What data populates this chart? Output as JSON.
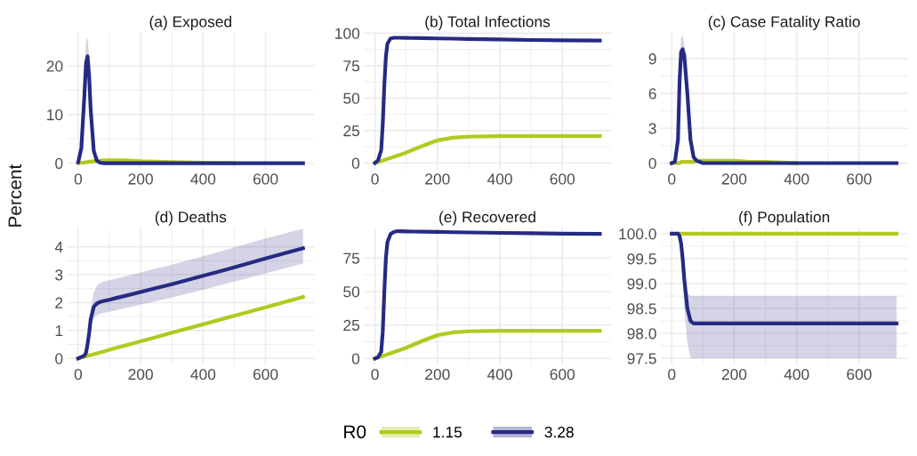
{
  "chart_data": [
    {
      "type": "line",
      "title": "(a) Exposed",
      "ylabel": "Percent",
      "x": [
        0,
        10,
        20,
        25,
        30,
        35,
        40,
        50,
        60,
        70,
        80,
        100,
        120,
        150,
        200,
        250,
        300,
        400,
        500,
        600,
        720
      ],
      "xlim": [
        -36,
        756
      ],
      "xticks": [
        0,
        200,
        400,
        600
      ],
      "ylim": [
        -1.3,
        27
      ],
      "yticks": [
        0,
        10,
        20
      ],
      "grid": true,
      "legend": "bottom",
      "legend_title": "R0",
      "series": [
        {
          "name": "1.15",
          "color": "#b2c91f",
          "values": [
            0,
            0.1,
            0.1,
            0.2,
            0.2,
            0.3,
            0.3,
            0.4,
            0.5,
            0.5,
            0.6,
            0.6,
            0.6,
            0.6,
            0.4,
            0.3,
            0.2,
            0.1,
            0,
            null,
            null
          ]
        },
        {
          "name": "3.28",
          "color": "#262a83",
          "values": [
            0.2,
            3,
            14,
            20.5,
            22,
            18,
            11,
            2.5,
            0.5,
            0.1,
            0,
            0,
            0,
            0,
            0,
            0,
            0,
            0,
            0,
            0,
            0
          ],
          "lower": [
            0.1,
            2,
            10,
            16,
            18,
            14,
            8,
            1.5,
            0.3,
            0,
            0,
            0,
            0,
            0,
            0,
            0,
            0,
            0,
            0,
            0,
            0
          ],
          "upper": [
            0.3,
            4,
            18,
            25,
            26,
            22,
            14,
            3.5,
            0.8,
            0.2,
            0,
            0,
            0,
            0,
            0,
            0,
            0,
            0,
            0,
            0,
            0
          ]
        }
      ]
    },
    {
      "type": "line",
      "title": "(b) Total Infections",
      "x": [
        0,
        10,
        20,
        25,
        30,
        35,
        40,
        50,
        60,
        70,
        80,
        100,
        120,
        150,
        200,
        250,
        300,
        400,
        500,
        600,
        720
      ],
      "xlim": [
        -36,
        756
      ],
      "xticks": [
        0,
        200,
        400,
        600
      ],
      "ylim": [
        -5,
        101
      ],
      "yticks": [
        0,
        25,
        50,
        75,
        100
      ],
      "grid": true,
      "series": [
        {
          "name": "1.15",
          "color": "#b2c91f",
          "values": [
            0,
            0.8,
            1.5,
            1.9,
            2.3,
            2.7,
            3.1,
            3.9,
            4.7,
            5.5,
            6.3,
            8,
            10,
            13,
            17.5,
            19.5,
            20.3,
            20.7,
            20.7,
            20.7,
            20.7
          ],
          "lower": [
            0,
            0.6,
            1.2,
            1.6,
            1.9,
            2.2,
            2.6,
            3.3,
            4,
            4.7,
            5.4,
            7,
            8.5,
            11,
            15,
            18,
            19.5,
            20.3,
            20.4,
            20.4,
            20.4
          ],
          "upper": [
            0,
            0.9,
            1.7,
            2.1,
            2.5,
            2.9,
            3.3,
            4.2,
            5,
            5.9,
            6.8,
            8.6,
            10.8,
            14,
            18.5,
            20.2,
            20.7,
            21,
            21,
            21,
            21
          ]
        },
        {
          "name": "3.28",
          "color": "#262a83",
          "values": [
            0,
            2,
            10,
            30,
            60,
            82,
            92,
            96,
            96.5,
            96.5,
            96.5,
            96.4,
            96.3,
            96.2,
            96,
            95.8,
            95.6,
            95.2,
            94.8,
            94.5,
            94.3
          ]
        }
      ]
    },
    {
      "type": "line",
      "title": "(c) Case Fatality Ratio",
      "x": [
        0,
        10,
        20,
        25,
        30,
        35,
        40,
        50,
        60,
        70,
        80,
        100,
        120,
        150,
        200,
        250,
        300,
        400,
        500,
        600,
        720
      ],
      "xlim": [
        -36,
        756
      ],
      "xticks": [
        0,
        200,
        400,
        600
      ],
      "ylim": [
        -0.55,
        11.3
      ],
      "yticks": [
        0,
        3,
        6,
        9
      ],
      "grid": true,
      "series": [
        {
          "name": "1.15",
          "color": "#b2c91f",
          "values": [
            0,
            0,
            0,
            0,
            0.1,
            0.1,
            0.1,
            0.1,
            0.1,
            0.1,
            0.2,
            0.2,
            0.2,
            0.2,
            0.2,
            0.1,
            0.1,
            0,
            null,
            null,
            null
          ]
        },
        {
          "name": "3.28",
          "color": "#262a83",
          "values": [
            0,
            0.1,
            2,
            7,
            9.6,
            9.8,
            9.3,
            6,
            2,
            0.5,
            0.2,
            0,
            0,
            0,
            0,
            0,
            0,
            0,
            0,
            0,
            0
          ],
          "lower": [
            0,
            0.1,
            1.5,
            6,
            8.5,
            8.8,
            8.3,
            5,
            1.5,
            0.3,
            0.1,
            0,
            0,
            0,
            0,
            0,
            0,
            0,
            0,
            0,
            0
          ],
          "upper": [
            0,
            0.2,
            2.5,
            8.5,
            10.8,
            11,
            10.3,
            7,
            2.5,
            0.7,
            0.2,
            0.1,
            0,
            0,
            0,
            0,
            0,
            0,
            0,
            0,
            0
          ]
        }
      ]
    },
    {
      "type": "line",
      "title": "(d) Deaths",
      "x": [
        0,
        10,
        20,
        25,
        30,
        35,
        40,
        50,
        60,
        70,
        80,
        100,
        120,
        150,
        200,
        250,
        300,
        400,
        500,
        600,
        720
      ],
      "xlim": [
        -36,
        756
      ],
      "xticks": [
        0,
        200,
        400,
        600
      ],
      "ylim": [
        -0.23,
        4.7
      ],
      "yticks": [
        0,
        1,
        2,
        3,
        4
      ],
      "grid": true,
      "series": [
        {
          "name": "1.15",
          "color": "#b2c91f",
          "values": [
            0,
            0.03,
            0.06,
            0.08,
            0.09,
            0.11,
            0.12,
            0.15,
            0.18,
            0.21,
            0.24,
            0.31,
            0.37,
            0.46,
            0.61,
            0.76,
            0.92,
            1.22,
            1.53,
            1.83,
            2.2
          ]
        },
        {
          "name": "3.28",
          "color": "#262a83",
          "values": [
            0,
            0.05,
            0.1,
            0.2,
            0.5,
            0.9,
            1.4,
            1.85,
            1.97,
            2.02,
            2.05,
            2.1,
            2.16,
            2.24,
            2.38,
            2.52,
            2.66,
            2.96,
            3.26,
            3.58,
            3.95
          ],
          "lower": [
            0,
            0.04,
            0.08,
            0.15,
            0.4,
            0.7,
            1.1,
            1.45,
            1.55,
            1.6,
            1.63,
            1.67,
            1.72,
            1.8,
            1.93,
            2.05,
            2.18,
            2.46,
            2.75,
            3.05,
            3.4
          ],
          "upper": [
            0,
            0.06,
            0.12,
            0.25,
            0.6,
            1.1,
            1.8,
            2.35,
            2.6,
            2.7,
            2.75,
            2.8,
            2.86,
            2.94,
            3.08,
            3.22,
            3.36,
            3.66,
            3.98,
            4.3,
            4.65
          ]
        }
      ]
    },
    {
      "type": "line",
      "title": "(e) Recovered",
      "x": [
        0,
        10,
        20,
        25,
        30,
        35,
        40,
        50,
        60,
        70,
        80,
        100,
        120,
        150,
        200,
        250,
        300,
        400,
        500,
        600,
        720
      ],
      "xlim": [
        -36,
        756
      ],
      "xticks": [
        0,
        200,
        400,
        600
      ],
      "ylim": [
        -4.7,
        98
      ],
      "yticks": [
        0,
        25,
        50,
        75
      ],
      "grid": true,
      "series": [
        {
          "name": "1.15",
          "color": "#b2c91f",
          "values": [
            0,
            0.8,
            1.5,
            1.9,
            2.3,
            2.7,
            3.1,
            3.9,
            4.7,
            5.5,
            6.3,
            8,
            10,
            13,
            17.5,
            19.5,
            20.3,
            20.7,
            20.7,
            20.7,
            20.7
          ],
          "lower": [
            0,
            0.6,
            1.2,
            1.6,
            1.9,
            2.2,
            2.6,
            3.3,
            4,
            4.7,
            5.4,
            7,
            8.5,
            11,
            15,
            18,
            19.5,
            20.3,
            20.4,
            20.4,
            20.4
          ],
          "upper": [
            0,
            0.9,
            1.7,
            2.1,
            2.5,
            2.9,
            3.3,
            4.2,
            5,
            5.9,
            6.8,
            8.6,
            10.8,
            14,
            18.5,
            20.2,
            20.7,
            21,
            21,
            21,
            21
          ]
        },
        {
          "name": "3.28",
          "color": "#262a83",
          "values": [
            0,
            1,
            5,
            20,
            50,
            75,
            87,
            93,
            94.5,
            95,
            95,
            94.9,
            94.8,
            94.7,
            94.5,
            94.3,
            94.1,
            93.8,
            93.5,
            93.2,
            93
          ]
        }
      ]
    },
    {
      "type": "line",
      "title": "(f) Population",
      "x": [
        0,
        10,
        20,
        25,
        30,
        35,
        40,
        50,
        60,
        70,
        80,
        100,
        120,
        150,
        200,
        250,
        300,
        400,
        500,
        600,
        720
      ],
      "xlim": [
        -36,
        756
      ],
      "xticks": [
        0,
        200,
        400,
        600
      ],
      "ylim": [
        97.37,
        100.13
      ],
      "yticks": [
        {
          "value": 97.5,
          "label": "97.5"
        },
        {
          "value": 98,
          "label": "98.0"
        },
        {
          "value": 98.5,
          "label": "98.5"
        },
        {
          "value": 99,
          "label": "99.0"
        },
        {
          "value": 99.5,
          "label": "99.5"
        },
        {
          "value": 100,
          "label": "100.0"
        }
      ],
      "grid": true,
      "series": [
        {
          "name": "1.15",
          "color": "#b2c91f",
          "values": [
            null,
            null,
            100,
            100,
            100,
            100,
            100,
            100,
            100,
            100,
            100,
            100,
            100,
            100,
            100,
            100,
            100,
            100,
            100,
            100,
            100
          ]
        },
        {
          "name": "3.28",
          "color": "#262a83",
          "values": [
            100,
            100,
            100,
            99.95,
            99.8,
            99.5,
            99.1,
            98.5,
            98.25,
            98.2,
            98.2,
            98.2,
            98.2,
            98.2,
            98.2,
            98.2,
            98.2,
            98.2,
            98.2,
            98.2,
            98.2
          ],
          "lower": [
            100,
            100,
            100,
            99.9,
            99.5,
            99,
            98.5,
            97.8,
            97.5,
            97.5,
            97.5,
            97.5,
            97.5,
            97.5,
            97.5,
            97.5,
            97.5,
            97.5,
            97.5,
            97.5,
            97.5
          ],
          "upper": [
            100,
            100,
            100,
            100,
            100,
            99.8,
            99.2,
            98.8,
            98.75,
            98.75,
            98.75,
            98.75,
            98.75,
            98.75,
            98.75,
            98.75,
            98.75,
            98.75,
            98.75,
            98.75,
            98.75
          ]
        }
      ]
    }
  ]
}
